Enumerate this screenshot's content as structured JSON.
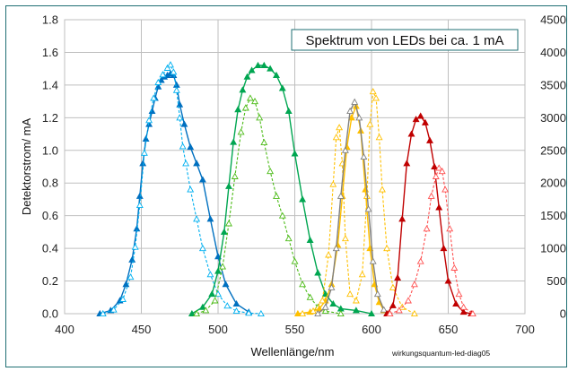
{
  "chart_data": {
    "type": "line",
    "title": "Spektrum von LEDs bei ca. 1 mA",
    "xlabel": "Wellenlänge/nm",
    "ylabel": "Detektorstrom/ mA",
    "source_note": "wirkungsquantum-led-diag05",
    "xlim": [
      400,
      700
    ],
    "x_ticks": [
      400,
      450,
      500,
      550,
      600,
      650,
      700
    ],
    "ylim": [
      0,
      1.8
    ],
    "y_ticks": [
      "0.0",
      "0.2",
      "0.4",
      "0.6",
      "0.8",
      "1.0",
      "1.2",
      "1.4",
      "1.6",
      "1.8"
    ],
    "y2lim": [
      0,
      4500
    ],
    "y2_ticks": [
      "0",
      "500",
      "1000",
      "1500",
      "2000",
      "2500",
      "3000",
      "3500",
      "4000",
      "4500"
    ],
    "grid": true,
    "series": [
      {
        "color": "#0070c0",
        "marker": "filled-triangle",
        "line": "solid",
        "axis": "left",
        "x": [
          423,
          430,
          436,
          440,
          444,
          447,
          449,
          451,
          453,
          455,
          457,
          459,
          461,
          463,
          465,
          467,
          469,
          471,
          473,
          475,
          478,
          482,
          486,
          490,
          495,
          500,
          505,
          512,
          520
        ],
        "y": [
          0.0,
          0.02,
          0.08,
          0.18,
          0.33,
          0.52,
          0.72,
          0.92,
          1.07,
          1.16,
          1.24,
          1.32,
          1.39,
          1.43,
          1.45,
          1.46,
          1.47,
          1.46,
          1.4,
          1.28,
          1.16,
          1.02,
          0.92,
          0.82,
          0.58,
          0.35,
          0.18,
          0.06,
          0.01
        ]
      },
      {
        "color": "#00b0f0",
        "marker": "hollow-triangle",
        "line": "dashed",
        "axis": "right",
        "x": [
          425,
          432,
          438,
          443,
          446,
          449,
          452,
          455,
          458,
          461,
          464,
          467,
          469,
          471,
          473,
          475,
          477,
          479,
          482,
          486,
          490,
          495,
          500,
          506,
          512,
          520,
          528
        ],
        "y": [
          0,
          60,
          220,
          560,
          1020,
          1660,
          2460,
          2960,
          3300,
          3540,
          3660,
          3760,
          3810,
          3700,
          3420,
          3000,
          2560,
          2300,
          1900,
          1450,
          1000,
          600,
          300,
          120,
          40,
          10,
          0
        ]
      },
      {
        "color": "#00a651",
        "marker": "filled-triangle",
        "line": "solid",
        "axis": "left",
        "x": [
          483,
          490,
          496,
          500,
          504,
          507,
          510,
          513,
          516,
          519,
          522,
          526,
          530,
          534,
          538,
          542,
          546,
          550,
          555,
          560,
          565,
          570,
          575,
          580,
          590,
          600
        ],
        "y": [
          0.0,
          0.04,
          0.12,
          0.26,
          0.5,
          0.78,
          1.05,
          1.25,
          1.37,
          1.45,
          1.49,
          1.52,
          1.52,
          1.5,
          1.46,
          1.38,
          1.24,
          0.98,
          0.7,
          0.45,
          0.25,
          0.12,
          0.06,
          0.03,
          0.02,
          0.0
        ]
      },
      {
        "color": "#4cbb17",
        "marker": "hollow-triangle",
        "line": "dashed",
        "axis": "right",
        "x": [
          486,
          492,
          498,
          503,
          507,
          511,
          515,
          518,
          521,
          524,
          527,
          530,
          534,
          538,
          542,
          546,
          550,
          555,
          560,
          565,
          570,
          580
        ],
        "y": [
          0,
          50,
          200,
          720,
          1380,
          2100,
          2780,
          3150,
          3300,
          3250,
          3000,
          2620,
          2180,
          1800,
          1500,
          1150,
          800,
          450,
          250,
          100,
          40,
          0
        ]
      },
      {
        "color": "#ffc000",
        "marker": "filled-triangle",
        "line": "solid",
        "axis": "left",
        "x": [
          552,
          560,
          566,
          570,
          574,
          578,
          581,
          584,
          587,
          590,
          593,
          596,
          599,
          602,
          605,
          608,
          612
        ],
        "y": [
          0.0,
          0.01,
          0.03,
          0.08,
          0.18,
          0.42,
          0.72,
          1.02,
          1.2,
          1.27,
          1.12,
          0.76,
          0.4,
          0.18,
          0.07,
          0.02,
          0.0
        ]
      },
      {
        "color": "#ffc000",
        "marker": "hollow-triangle",
        "line": "dashed",
        "axis": "right",
        "x": [
          555,
          562,
          568,
          572,
          575,
          577,
          579,
          581,
          583,
          586,
          590,
          594,
          597,
          599,
          601,
          603,
          605,
          607,
          610,
          614,
          620,
          628
        ],
        "y": [
          0,
          40,
          200,
          900,
          1980,
          2700,
          2850,
          2300,
          1150,
          300,
          200,
          600,
          1800,
          2900,
          3400,
          3300,
          2700,
          1900,
          1000,
          400,
          100,
          0
        ]
      },
      {
        "color": "#808080",
        "marker": "hollow-triangle",
        "line": "solid",
        "axis": "right",
        "x": [
          565,
          570,
          574,
          577,
          580,
          583,
          586,
          589,
          592,
          595,
          598,
          601,
          604,
          608,
          612
        ],
        "y": [
          0,
          100,
          400,
          1000,
          1800,
          2500,
          3100,
          3240,
          3000,
          2400,
          1600,
          800,
          300,
          60,
          0
        ]
      },
      {
        "color": "#c00000",
        "marker": "filled-triangle",
        "line": "solid",
        "axis": "left",
        "x": [
          610,
          614,
          617,
          620,
          623,
          626,
          629,
          632,
          635,
          638,
          641,
          644,
          647,
          650,
          655,
          660,
          665
        ],
        "y": [
          0.0,
          0.05,
          0.22,
          0.58,
          0.92,
          1.1,
          1.19,
          1.21,
          1.17,
          1.06,
          0.9,
          0.65,
          0.4,
          0.2,
          0.06,
          0.01,
          0.0
        ]
      },
      {
        "color": "#ff5050",
        "marker": "hollow-triangle",
        "line": "dashed",
        "axis": "right",
        "x": [
          612,
          618,
          624,
          628,
          632,
          636,
          639,
          642,
          644,
          646,
          648,
          651,
          654,
          657,
          660,
          666
        ],
        "y": [
          0,
          50,
          200,
          450,
          800,
          1300,
          1800,
          2100,
          2230,
          2180,
          1900,
          1300,
          700,
          300,
          100,
          0
        ]
      }
    ]
  }
}
